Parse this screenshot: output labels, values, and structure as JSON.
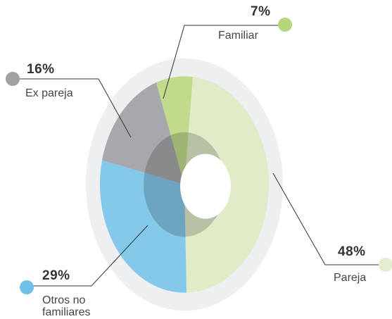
{
  "chart_data": {
    "type": "donut",
    "categories": [
      "Pareja",
      "Otros no familiares",
      "Ex pareja",
      "Familiar"
    ],
    "values": [
      48,
      29,
      16,
      7
    ],
    "value_labels": [
      "48%",
      "29%",
      "16%",
      "7%"
    ],
    "colors": [
      "#e0ebc8",
      "#85c9ea",
      "#a7a8ab",
      "#c2da8c"
    ]
  }
}
